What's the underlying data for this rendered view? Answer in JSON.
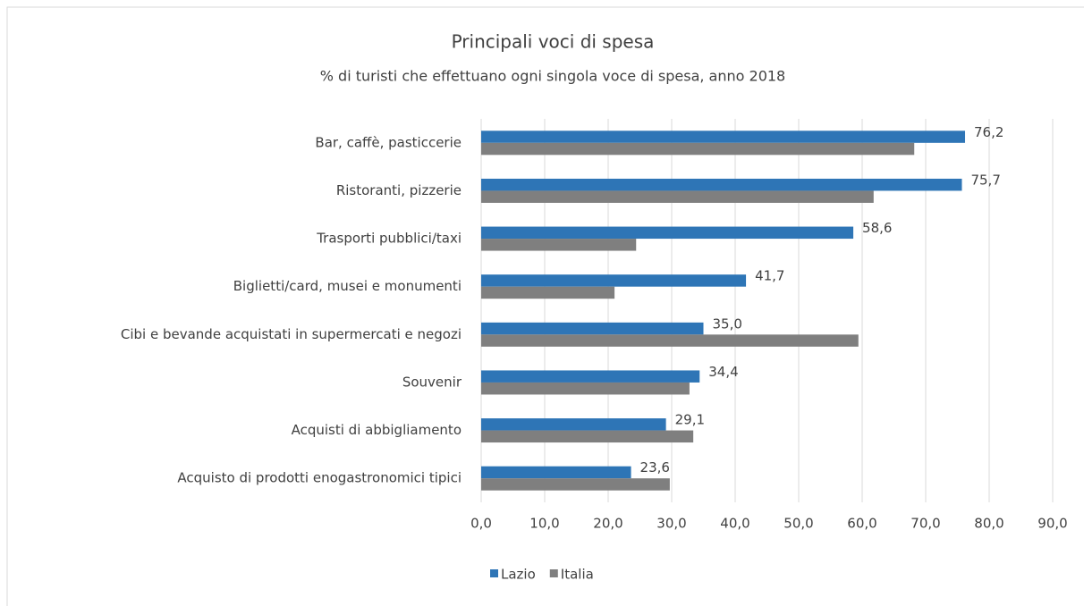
{
  "chart_data": {
    "type": "bar",
    "orientation": "horizontal",
    "title": "Principali voci di spesa",
    "subtitle": "% di turisti che effettuano  ogni singola voce di spesa, anno 2018",
    "categories": [
      "Bar, caffè, pasticcerie",
      "Ristoranti, pizzerie",
      "Trasporti pubblici/taxi",
      "Biglietti/card, musei e monumenti",
      "Cibi e bevande acquistati in supermercati e negozi",
      "Souvenir",
      "Acquisti di abbigliamento",
      "Acquisto di prodotti enogastronomici tipici"
    ],
    "series": [
      {
        "name": "Lazio",
        "color": "#2e75b6",
        "values": [
          76.2,
          75.7,
          58.6,
          41.7,
          35.0,
          34.4,
          29.1,
          23.6
        ],
        "value_labels": [
          "76,2",
          "75,7",
          "58,6",
          "41,7",
          "35,0",
          "34,4",
          "29,1",
          "23,6"
        ]
      },
      {
        "name": "Italia",
        "color": "#7f7f7f",
        "values": [
          68.2,
          61.8,
          24.4,
          21.0,
          59.4,
          32.8,
          33.4,
          29.7
        ]
      }
    ],
    "xlim": [
      0,
      90
    ],
    "xticks": [
      {
        "value": 0,
        "label": "0,0"
      },
      {
        "value": 10,
        "label": "10,0"
      },
      {
        "value": 20,
        "label": "20,0"
      },
      {
        "value": 30,
        "label": "30,0"
      },
      {
        "value": 40,
        "label": "40,0"
      },
      {
        "value": 50,
        "label": "50,0"
      },
      {
        "value": 60,
        "label": "60,0"
      },
      {
        "value": 70,
        "label": "70,0"
      },
      {
        "value": 80,
        "label": "80,0"
      },
      {
        "value": 90,
        "label": "90,0"
      }
    ],
    "grid": true,
    "legend": "bottom"
  }
}
